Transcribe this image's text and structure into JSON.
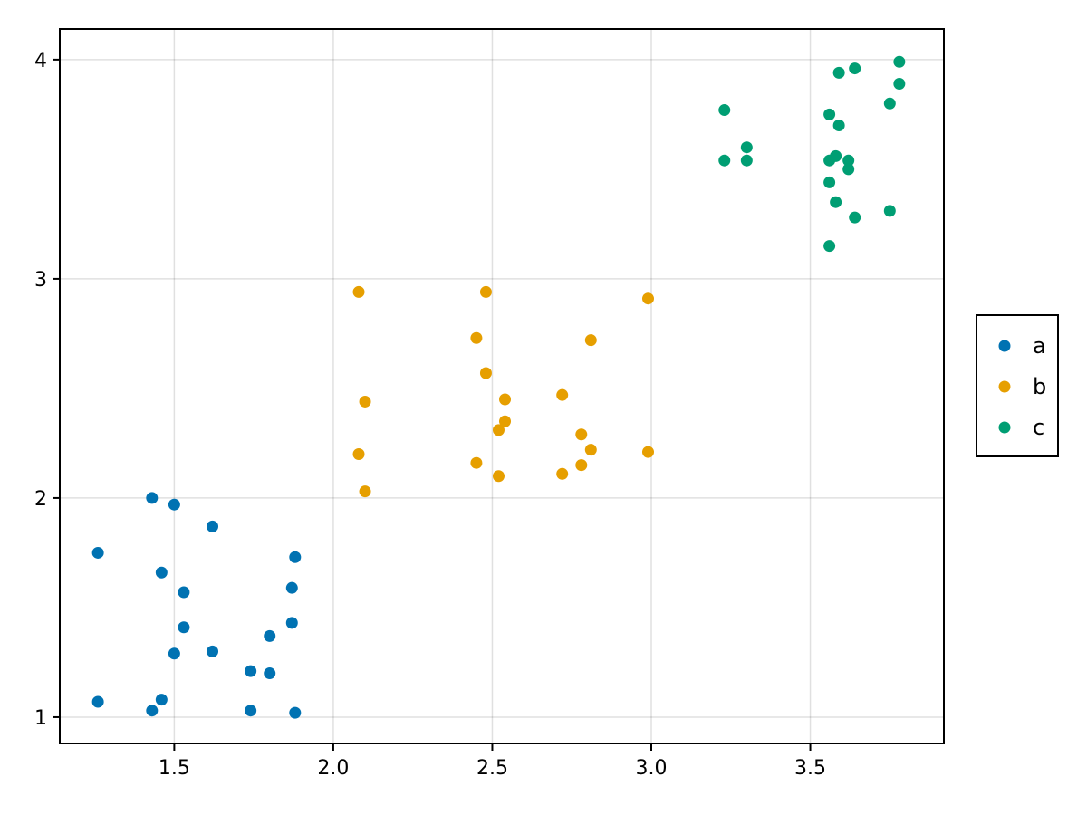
{
  "chart_data": {
    "type": "scatter",
    "title": "",
    "xlabel": "",
    "ylabel": "",
    "xlim": [
      1.14,
      3.92
    ],
    "ylim": [
      0.88,
      4.14
    ],
    "grid": true,
    "legend_position": "right",
    "x_ticks": [
      1.5,
      2.0,
      2.5,
      3.0,
      3.5
    ],
    "x_tick_labels": [
      "1.5",
      "2.0",
      "2.5",
      "3.0",
      "3.5"
    ],
    "y_ticks": [
      1,
      2,
      3,
      4
    ],
    "y_tick_labels": [
      "1",
      "2",
      "3",
      "4"
    ],
    "series": [
      {
        "name": "a",
        "color": "#0072b2",
        "points": [
          [
            1.26,
            1.75
          ],
          [
            1.26,
            1.07
          ],
          [
            1.43,
            2.0
          ],
          [
            1.43,
            1.03
          ],
          [
            1.46,
            1.66
          ],
          [
            1.46,
            1.08
          ],
          [
            1.5,
            1.97
          ],
          [
            1.5,
            1.29
          ],
          [
            1.53,
            1.57
          ],
          [
            1.53,
            1.41
          ],
          [
            1.62,
            1.87
          ],
          [
            1.62,
            1.3
          ],
          [
            1.74,
            1.21
          ],
          [
            1.74,
            1.03
          ],
          [
            1.8,
            1.37
          ],
          [
            1.8,
            1.2
          ],
          [
            1.87,
            1.59
          ],
          [
            1.87,
            1.43
          ],
          [
            1.88,
            1.73
          ],
          [
            1.88,
            1.02
          ]
        ]
      },
      {
        "name": "b",
        "color": "#e69f00",
        "points": [
          [
            2.08,
            2.94
          ],
          [
            2.08,
            2.2
          ],
          [
            2.1,
            2.44
          ],
          [
            2.1,
            2.03
          ],
          [
            2.45,
            2.73
          ],
          [
            2.45,
            2.16
          ],
          [
            2.48,
            2.94
          ],
          [
            2.48,
            2.57
          ],
          [
            2.52,
            2.31
          ],
          [
            2.52,
            2.1
          ],
          [
            2.54,
            2.45
          ],
          [
            2.54,
            2.35
          ],
          [
            2.72,
            2.47
          ],
          [
            2.72,
            2.11
          ],
          [
            2.78,
            2.29
          ],
          [
            2.78,
            2.15
          ],
          [
            2.81,
            2.72
          ],
          [
            2.81,
            2.22
          ],
          [
            2.99,
            2.91
          ],
          [
            2.99,
            2.21
          ]
        ]
      },
      {
        "name": "c",
        "color": "#009e73",
        "points": [
          [
            3.23,
            3.77
          ],
          [
            3.23,
            3.54
          ],
          [
            3.3,
            3.6
          ],
          [
            3.3,
            3.54
          ],
          [
            3.56,
            3.75
          ],
          [
            3.56,
            3.54
          ],
          [
            3.56,
            3.44
          ],
          [
            3.56,
            3.15
          ],
          [
            3.58,
            3.56
          ],
          [
            3.58,
            3.35
          ],
          [
            3.59,
            3.94
          ],
          [
            3.59,
            3.7
          ],
          [
            3.62,
            3.54
          ],
          [
            3.62,
            3.5
          ],
          [
            3.64,
            3.96
          ],
          [
            3.64,
            3.28
          ],
          [
            3.75,
            3.8
          ],
          [
            3.75,
            3.31
          ],
          [
            3.78,
            3.99
          ],
          [
            3.78,
            3.89
          ]
        ]
      }
    ]
  }
}
